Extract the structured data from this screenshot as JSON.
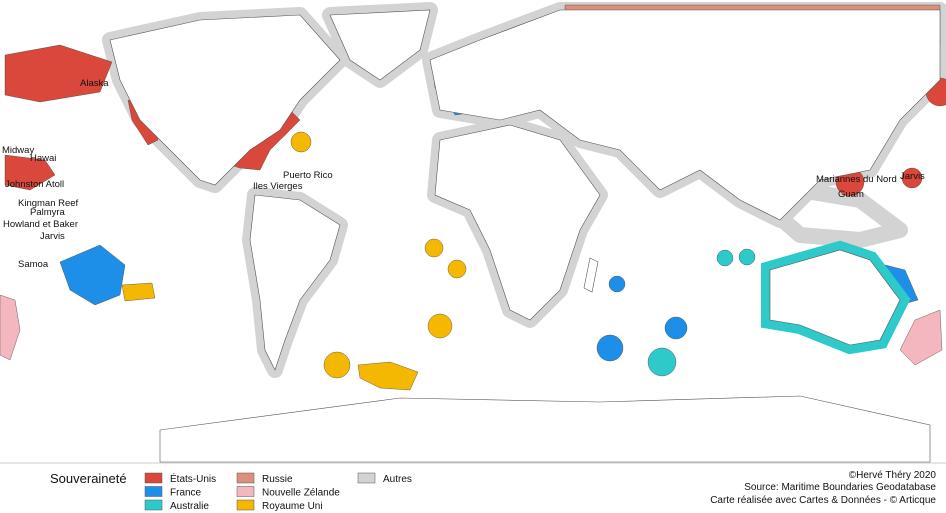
{
  "legend": {
    "title": "Souveraineté",
    "items": [
      {
        "name": "États-Unis",
        "color": "#d9483b"
      },
      {
        "name": "France",
        "color": "#1e8fe8"
      },
      {
        "name": "Australie",
        "color": "#2ec9c9"
      },
      {
        "name": "Russie",
        "color": "#dc8f7a"
      },
      {
        "name": "Nouvelle Zélande",
        "color": "#f4b7c0"
      },
      {
        "name": "Royaume Uni",
        "color": "#f5b800"
      },
      {
        "name": "Autres",
        "color": "#d3d3d3"
      }
    ]
  },
  "map_labels": [
    "Alaska",
    "Midway",
    "Hawai",
    "Johnston Atoll",
    "Kingman Reef",
    "Palmyra",
    "Howland et Baker",
    "Jarvis",
    "Samoa",
    "Puerto Rico",
    "Iles Vierges",
    "Mariannes du Nord",
    "Guam",
    "Jarvis"
  ],
  "credits": [
    "©Hervé Théry  2020",
    "Source: Maritime Boundaries Geodatabase",
    "Carte réalisée avec Cartes & Données - © Articque"
  ]
}
